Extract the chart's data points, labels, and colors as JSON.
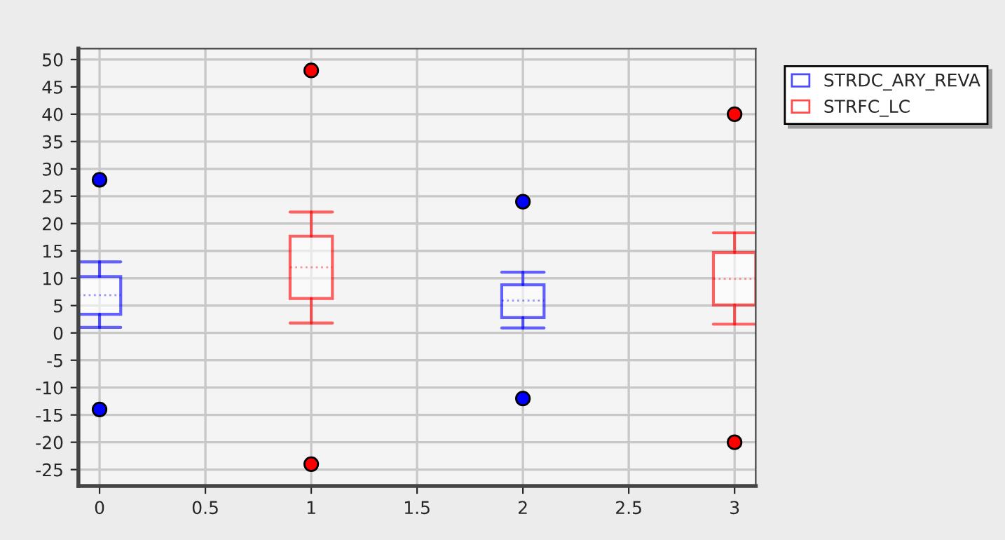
{
  "chart_data": {
    "type": "box",
    "xlim": [
      -0.1,
      3.1
    ],
    "xticks": [
      0,
      0.5,
      1,
      1.5,
      2,
      2.5,
      3
    ],
    "ylim": [
      -28,
      52
    ],
    "yticks": [
      -25,
      -20,
      -15,
      -10,
      -5,
      0,
      5,
      10,
      15,
      20,
      25,
      30,
      35,
      40,
      45,
      50
    ],
    "grid": true,
    "legend": "right",
    "series": [
      {
        "name": "STRDC_ARY_REVA",
        "color": "#0000ff",
        "x": [
          0,
          2
        ],
        "boxes": [
          {
            "low": 1,
            "q1": 3.4,
            "median": 6.9,
            "q3": 10.3,
            "high": 13,
            "outliers": [
              28,
              -14
            ]
          },
          {
            "low": 0.9,
            "q1": 2.8,
            "median": 5.9,
            "q3": 8.8,
            "high": 11.1,
            "outliers": [
              24,
              -12
            ]
          }
        ]
      },
      {
        "name": "STRFC_LC",
        "color": "#ff0000",
        "x": [
          1,
          3
        ],
        "boxes": [
          {
            "low": 1.8,
            "q1": 6.3,
            "median": 12,
            "q3": 17.7,
            "high": 22.1,
            "outliers": [
              48,
              -24
            ]
          },
          {
            "low": 1.6,
            "q1": 5.1,
            "median": 9.9,
            "q3": 14.7,
            "high": 18.3,
            "outliers": [
              40,
              -20
            ]
          }
        ]
      }
    ]
  }
}
